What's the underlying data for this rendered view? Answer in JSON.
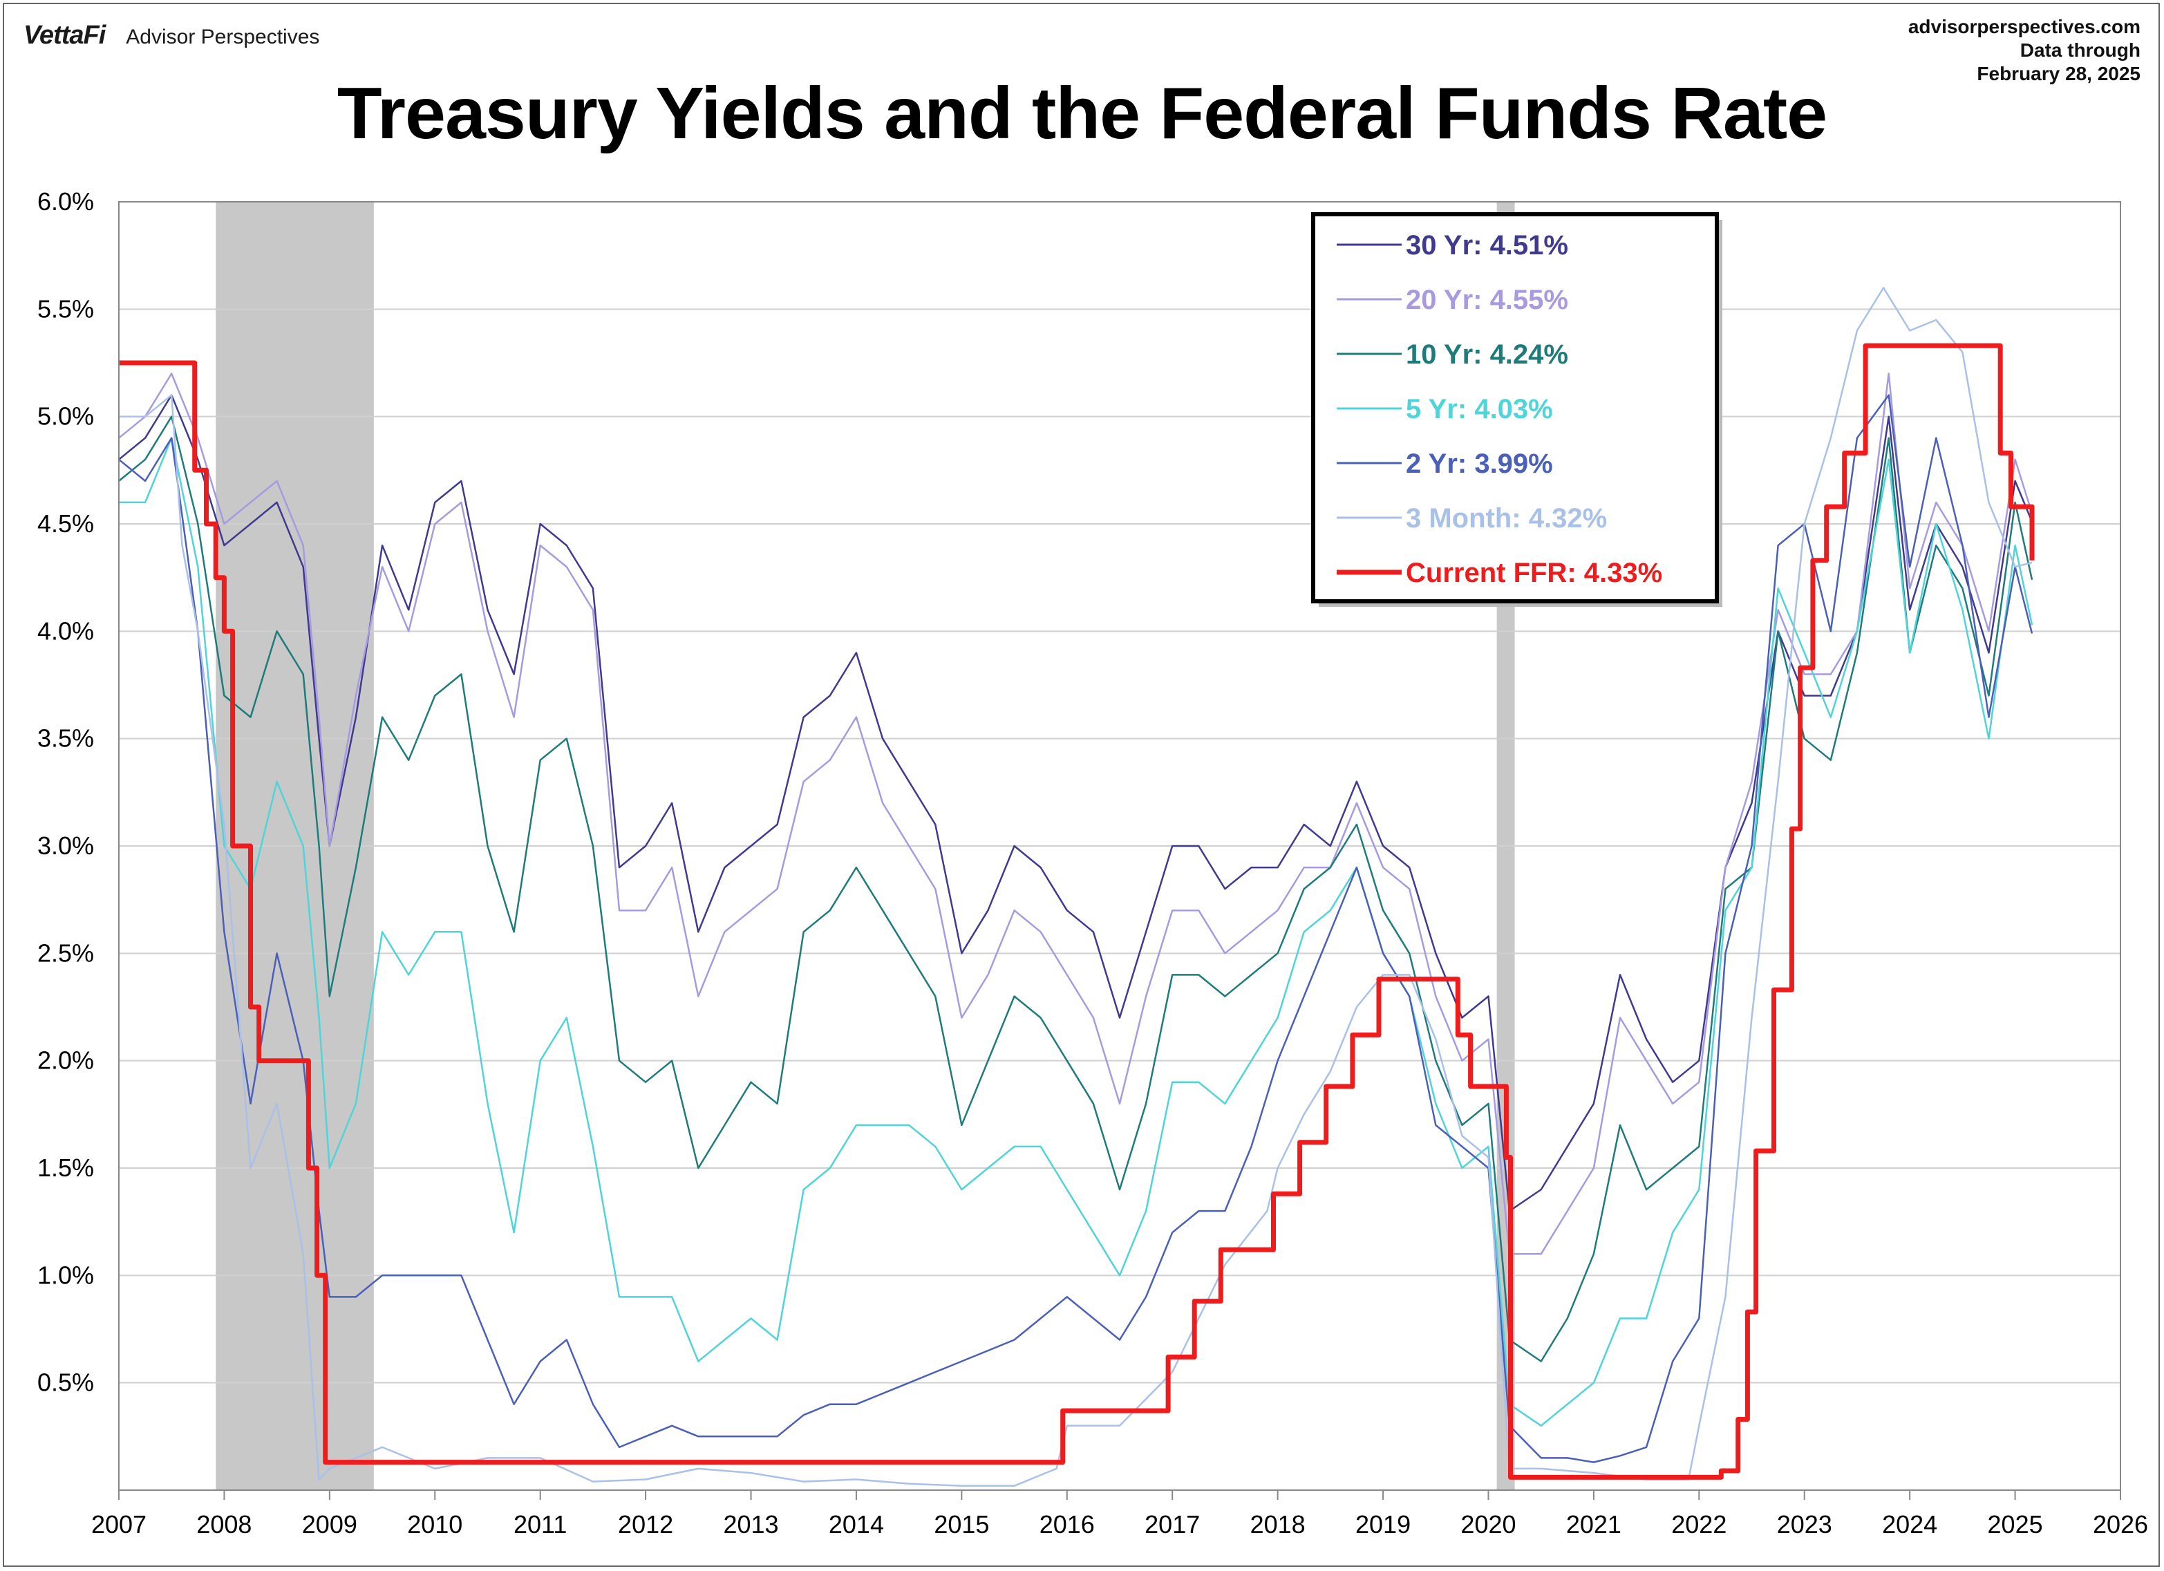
{
  "header": {
    "brand_logo": "VettaFi",
    "brand_name": "Advisor Perspectives",
    "source_lines": [
      "advisorperspectives.com",
      "Data through",
      "February 28, 2025"
    ]
  },
  "chart_data": {
    "type": "line",
    "title": "Treasury Yields and the Federal Funds Rate",
    "xlabel": "",
    "ylabel": "",
    "xlim": [
      2007,
      2026
    ],
    "ylim": [
      0,
      6
    ],
    "x_ticks": [
      "2007",
      "2008",
      "2009",
      "2010",
      "2011",
      "2012",
      "2013",
      "2014",
      "2015",
      "2016",
      "2017",
      "2018",
      "2019",
      "2020",
      "2021",
      "2022",
      "2023",
      "2024",
      "2025",
      "2026"
    ],
    "y_ticks": [
      "0.5%",
      "1.0%",
      "1.5%",
      "2.0%",
      "2.5%",
      "3.0%",
      "3.5%",
      "4.0%",
      "4.5%",
      "5.0%",
      "5.5%",
      "6.0%"
    ],
    "grid": true,
    "legend_position": "top-center",
    "recessions": [
      [
        2007.92,
        2009.42
      ],
      [
        2020.08,
        2020.25
      ]
    ],
    "series": [
      {
        "name": "30 Yr",
        "label": "30 Yr: 4.51%",
        "color": "#3f3a8f",
        "x": [
          2007.0,
          2007.25,
          2007.5,
          2007.75,
          2008.0,
          2008.25,
          2008.5,
          2008.75,
          2008.9,
          2009.0,
          2009.25,
          2009.5,
          2009.75,
          2010.0,
          2010.25,
          2010.5,
          2010.75,
          2011.0,
          2011.25,
          2011.5,
          2011.75,
          2012.0,
          2012.25,
          2012.5,
          2012.75,
          2013.0,
          2013.25,
          2013.5,
          2013.75,
          2014.0,
          2014.25,
          2014.5,
          2014.75,
          2015.0,
          2015.25,
          2015.5,
          2015.75,
          2016.0,
          2016.25,
          2016.5,
          2016.75,
          2017.0,
          2017.25,
          2017.5,
          2017.75,
          2018.0,
          2018.25,
          2018.5,
          2018.75,
          2019.0,
          2019.25,
          2019.5,
          2019.75,
          2020.0,
          2020.2,
          2020.5,
          2020.75,
          2021.0,
          2021.25,
          2021.5,
          2021.75,
          2022.0,
          2022.25,
          2022.5,
          2022.75,
          2023.0,
          2023.25,
          2023.5,
          2023.8,
          2024.0,
          2024.25,
          2024.5,
          2024.75,
          2025.0,
          2025.16
        ],
        "y": [
          4.8,
          4.9,
          5.1,
          4.8,
          4.4,
          4.5,
          4.6,
          4.3,
          3.5,
          3.0,
          3.6,
          4.4,
          4.1,
          4.6,
          4.7,
          4.1,
          3.8,
          4.5,
          4.4,
          4.2,
          2.9,
          3.0,
          3.2,
          2.6,
          2.9,
          3.0,
          3.1,
          3.6,
          3.7,
          3.9,
          3.5,
          3.3,
          3.1,
          2.5,
          2.7,
          3.0,
          2.9,
          2.7,
          2.6,
          2.2,
          2.6,
          3.0,
          3.0,
          2.8,
          2.9,
          2.9,
          3.1,
          3.0,
          3.3,
          3.0,
          2.9,
          2.5,
          2.2,
          2.3,
          1.3,
          1.4,
          1.6,
          1.8,
          2.4,
          2.1,
          1.9,
          2.0,
          2.9,
          3.2,
          4.0,
          3.7,
          3.7,
          4.0,
          5.0,
          4.1,
          4.5,
          4.3,
          3.9,
          4.7,
          4.51
        ]
      },
      {
        "name": "20 Yr",
        "label": "20 Yr: 4.55%",
        "color": "#a89ae0",
        "x": [
          2007.0,
          2007.25,
          2007.5,
          2007.75,
          2008.0,
          2008.25,
          2008.5,
          2008.75,
          2008.9,
          2009.0,
          2009.25,
          2009.5,
          2009.75,
          2010.0,
          2010.25,
          2010.5,
          2010.75,
          2011.0,
          2011.25,
          2011.5,
          2011.75,
          2012.0,
          2012.25,
          2012.5,
          2012.75,
          2013.0,
          2013.25,
          2013.5,
          2013.75,
          2014.0,
          2014.25,
          2014.5,
          2014.75,
          2015.0,
          2015.25,
          2015.5,
          2015.75,
          2016.0,
          2016.25,
          2016.5,
          2016.75,
          2017.0,
          2017.25,
          2017.5,
          2017.75,
          2018.0,
          2018.25,
          2018.5,
          2018.75,
          2019.0,
          2019.25,
          2019.5,
          2019.75,
          2020.0,
          2020.2,
          2020.5,
          2020.75,
          2021.0,
          2021.25,
          2021.5,
          2021.75,
          2022.0,
          2022.25,
          2022.5,
          2022.75,
          2023.0,
          2023.25,
          2023.5,
          2023.8,
          2024.0,
          2024.25,
          2024.5,
          2024.75,
          2025.0,
          2025.16
        ],
        "y": [
          4.9,
          5.0,
          5.2,
          4.9,
          4.5,
          4.6,
          4.7,
          4.4,
          3.6,
          3.0,
          3.7,
          4.3,
          4.0,
          4.5,
          4.6,
          4.0,
          3.6,
          4.4,
          4.3,
          4.1,
          2.7,
          2.7,
          2.9,
          2.3,
          2.6,
          2.7,
          2.8,
          3.3,
          3.4,
          3.6,
          3.2,
          3.0,
          2.8,
          2.2,
          2.4,
          2.7,
          2.6,
          2.4,
          2.2,
          1.8,
          2.3,
          2.7,
          2.7,
          2.5,
          2.6,
          2.7,
          2.9,
          2.9,
          3.2,
          2.9,
          2.8,
          2.3,
          2.0,
          2.1,
          1.1,
          1.1,
          1.3,
          1.5,
          2.2,
          2.0,
          1.8,
          1.9,
          2.9,
          3.3,
          4.1,
          3.8,
          3.8,
          4.0,
          5.2,
          4.2,
          4.6,
          4.4,
          4.0,
          4.8,
          4.55
        ]
      },
      {
        "name": "10 Yr",
        "label": "10 Yr: 4.24%",
        "color": "#1e7b7b",
        "x": [
          2007.0,
          2007.25,
          2007.5,
          2007.75,
          2008.0,
          2008.25,
          2008.5,
          2008.75,
          2008.9,
          2009.0,
          2009.25,
          2009.5,
          2009.75,
          2010.0,
          2010.25,
          2010.5,
          2010.75,
          2011.0,
          2011.25,
          2011.5,
          2011.75,
          2012.0,
          2012.25,
          2012.5,
          2012.75,
          2013.0,
          2013.25,
          2013.5,
          2013.75,
          2014.0,
          2014.25,
          2014.5,
          2014.75,
          2015.0,
          2015.25,
          2015.5,
          2015.75,
          2016.0,
          2016.25,
          2016.5,
          2016.75,
          2017.0,
          2017.25,
          2017.5,
          2017.75,
          2018.0,
          2018.25,
          2018.5,
          2018.75,
          2019.0,
          2019.25,
          2019.5,
          2019.75,
          2020.0,
          2020.2,
          2020.5,
          2020.75,
          2021.0,
          2021.25,
          2021.5,
          2021.75,
          2022.0,
          2022.25,
          2022.5,
          2022.75,
          2023.0,
          2023.25,
          2023.5,
          2023.8,
          2024.0,
          2024.25,
          2024.5,
          2024.75,
          2025.0,
          2025.16
        ],
        "y": [
          4.7,
          4.8,
          5.0,
          4.5,
          3.7,
          3.6,
          4.0,
          3.8,
          3.0,
          2.3,
          2.9,
          3.6,
          3.4,
          3.7,
          3.8,
          3.0,
          2.6,
          3.4,
          3.5,
          3.0,
          2.0,
          1.9,
          2.0,
          1.5,
          1.7,
          1.9,
          1.8,
          2.6,
          2.7,
          2.9,
          2.7,
          2.5,
          2.3,
          1.7,
          2.0,
          2.3,
          2.2,
          2.0,
          1.8,
          1.4,
          1.8,
          2.4,
          2.4,
          2.3,
          2.4,
          2.5,
          2.8,
          2.9,
          3.1,
          2.7,
          2.5,
          2.0,
          1.7,
          1.8,
          0.7,
          0.6,
          0.8,
          1.1,
          1.7,
          1.4,
          1.5,
          1.6,
          2.8,
          2.9,
          4.0,
          3.5,
          3.4,
          3.9,
          4.9,
          3.9,
          4.4,
          4.2,
          3.7,
          4.6,
          4.24
        ]
      },
      {
        "name": "5 Yr",
        "label": "5 Yr: 4.03%",
        "color": "#4fd4d8",
        "x": [
          2007.0,
          2007.25,
          2007.5,
          2007.75,
          2008.0,
          2008.25,
          2008.5,
          2008.75,
          2008.9,
          2009.0,
          2009.25,
          2009.5,
          2009.75,
          2010.0,
          2010.25,
          2010.5,
          2010.75,
          2011.0,
          2011.25,
          2011.5,
          2011.75,
          2012.0,
          2012.25,
          2012.5,
          2012.75,
          2013.0,
          2013.25,
          2013.5,
          2013.75,
          2014.0,
          2014.25,
          2014.5,
          2014.75,
          2015.0,
          2015.25,
          2015.5,
          2015.75,
          2016.0,
          2016.25,
          2016.5,
          2016.75,
          2017.0,
          2017.25,
          2017.5,
          2017.75,
          2018.0,
          2018.25,
          2018.5,
          2018.75,
          2019.0,
          2019.25,
          2019.5,
          2019.75,
          2020.0,
          2020.2,
          2020.5,
          2020.75,
          2021.0,
          2021.25,
          2021.5,
          2021.75,
          2022.0,
          2022.25,
          2022.5,
          2022.75,
          2023.0,
          2023.25,
          2023.5,
          2023.8,
          2024.0,
          2024.25,
          2024.5,
          2024.75,
          2025.0,
          2025.16
        ],
        "y": [
          4.6,
          4.6,
          4.9,
          4.3,
          3.0,
          2.8,
          3.3,
          3.0,
          2.2,
          1.5,
          1.8,
          2.6,
          2.4,
          2.6,
          2.6,
          1.8,
          1.2,
          2.0,
          2.2,
          1.6,
          0.9,
          0.9,
          0.9,
          0.6,
          0.7,
          0.8,
          0.7,
          1.4,
          1.5,
          1.7,
          1.7,
          1.7,
          1.6,
          1.4,
          1.5,
          1.6,
          1.6,
          1.4,
          1.2,
          1.0,
          1.3,
          1.9,
          1.9,
          1.8,
          2.0,
          2.2,
          2.6,
          2.7,
          2.9,
          2.5,
          2.3,
          1.8,
          1.5,
          1.6,
          0.4,
          0.3,
          0.4,
          0.5,
          0.8,
          0.8,
          1.2,
          1.4,
          2.7,
          2.9,
          4.2,
          3.9,
          3.6,
          4.0,
          4.8,
          3.9,
          4.5,
          4.1,
          3.5,
          4.4,
          4.03
        ]
      },
      {
        "name": "2 Yr",
        "label": "2 Yr: 3.99%",
        "color": "#4a5fb8",
        "x": [
          2007.0,
          2007.25,
          2007.5,
          2007.75,
          2008.0,
          2008.25,
          2008.5,
          2008.75,
          2008.9,
          2009.0,
          2009.25,
          2009.5,
          2009.75,
          2010.0,
          2010.25,
          2010.5,
          2010.75,
          2011.0,
          2011.25,
          2011.5,
          2011.75,
          2012.0,
          2012.25,
          2012.5,
          2012.75,
          2013.0,
          2013.25,
          2013.5,
          2013.75,
          2014.0,
          2014.25,
          2014.5,
          2014.75,
          2015.0,
          2015.25,
          2015.5,
          2015.75,
          2016.0,
          2016.25,
          2016.5,
          2016.75,
          2017.0,
          2017.25,
          2017.5,
          2017.75,
          2018.0,
          2018.25,
          2018.5,
          2018.75,
          2019.0,
          2019.25,
          2019.5,
          2019.75,
          2020.0,
          2020.2,
          2020.5,
          2020.75,
          2021.0,
          2021.25,
          2021.5,
          2021.75,
          2022.0,
          2022.25,
          2022.5,
          2022.75,
          2023.0,
          2023.25,
          2023.5,
          2023.8,
          2024.0,
          2024.25,
          2024.5,
          2024.75,
          2025.0,
          2025.16
        ],
        "y": [
          4.8,
          4.7,
          4.9,
          4.0,
          2.6,
          1.8,
          2.5,
          2.0,
          1.3,
          0.9,
          0.9,
          1.0,
          1.0,
          1.0,
          1.0,
          0.7,
          0.4,
          0.6,
          0.7,
          0.4,
          0.2,
          0.25,
          0.3,
          0.25,
          0.25,
          0.25,
          0.25,
          0.35,
          0.4,
          0.4,
          0.45,
          0.5,
          0.55,
          0.6,
          0.65,
          0.7,
          0.8,
          0.9,
          0.8,
          0.7,
          0.9,
          1.2,
          1.3,
          1.3,
          1.6,
          2.0,
          2.3,
          2.6,
          2.9,
          2.5,
          2.3,
          1.7,
          1.6,
          1.5,
          0.3,
          0.15,
          0.15,
          0.13,
          0.16,
          0.2,
          0.6,
          0.8,
          2.5,
          3.0,
          4.4,
          4.5,
          4.0,
          4.9,
          5.1,
          4.3,
          4.9,
          4.4,
          3.6,
          4.3,
          3.99
        ]
      },
      {
        "name": "3 Month",
        "label": "3 Month: 4.32%",
        "color": "#a9c0e8",
        "x": [
          2007.0,
          2007.25,
          2007.5,
          2007.6,
          2007.75,
          2008.0,
          2008.25,
          2008.5,
          2008.75,
          2008.9,
          2009.0,
          2009.5,
          2010.0,
          2010.5,
          2011.0,
          2011.5,
          2012.0,
          2012.5,
          2013.0,
          2013.5,
          2014.0,
          2014.5,
          2015.0,
          2015.5,
          2015.9,
          2016.0,
          2016.5,
          2016.9,
          2017.0,
          2017.25,
          2017.5,
          2017.9,
          2018.0,
          2018.25,
          2018.5,
          2018.75,
          2019.0,
          2019.25,
          2019.5,
          2019.75,
          2020.0,
          2020.2,
          2020.5,
          2021.0,
          2021.5,
          2021.9,
          2022.0,
          2022.25,
          2022.5,
          2022.75,
          2023.0,
          2023.25,
          2023.5,
          2023.75,
          2024.0,
          2024.25,
          2024.5,
          2024.75,
          2025.0,
          2025.16
        ],
        "y": [
          5.0,
          5.0,
          5.1,
          4.4,
          4.0,
          3.1,
          1.5,
          1.8,
          1.1,
          0.05,
          0.1,
          0.2,
          0.1,
          0.15,
          0.15,
          0.04,
          0.05,
          0.1,
          0.08,
          0.04,
          0.05,
          0.03,
          0.02,
          0.02,
          0.1,
          0.3,
          0.3,
          0.5,
          0.55,
          0.8,
          1.05,
          1.3,
          1.5,
          1.75,
          1.95,
          2.25,
          2.4,
          2.4,
          2.1,
          1.65,
          1.55,
          0.1,
          0.1,
          0.08,
          0.05,
          0.05,
          0.3,
          0.9,
          2.2,
          3.3,
          4.5,
          4.9,
          5.4,
          5.6,
          5.4,
          5.45,
          5.3,
          4.6,
          4.3,
          4.32
        ]
      },
      {
        "name": "Current FFR",
        "label": "Current FFR: 4.33%",
        "color": "#ee1c1c",
        "step": true,
        "x": [
          2007.0,
          2007.6,
          2007.72,
          2007.83,
          2007.92,
          2008.0,
          2008.08,
          2008.25,
          2008.33,
          2008.8,
          2008.88,
          2008.96,
          2015.96,
          2016.96,
          2017.21,
          2017.46,
          2017.96,
          2018.21,
          2018.46,
          2018.71,
          2018.96,
          2019.58,
          2019.71,
          2019.83,
          2020.17,
          2020.21,
          2022.21,
          2022.37,
          2022.46,
          2022.54,
          2022.71,
          2022.88,
          2022.96,
          2023.08,
          2023.21,
          2023.38,
          2023.58,
          2024.71,
          2024.86,
          2024.96,
          2025.16
        ],
        "y": [
          5.25,
          5.25,
          4.75,
          4.5,
          4.25,
          4.0,
          3.0,
          2.25,
          2.0,
          1.5,
          1.0,
          0.13,
          0.37,
          0.62,
          0.88,
          1.12,
          1.38,
          1.62,
          1.88,
          2.12,
          2.38,
          2.38,
          2.12,
          1.88,
          1.55,
          0.06,
          0.09,
          0.33,
          0.83,
          1.58,
          2.33,
          3.08,
          3.83,
          4.33,
          4.58,
          4.83,
          5.33,
          5.33,
          4.83,
          4.58,
          4.33
        ]
      }
    ]
  }
}
